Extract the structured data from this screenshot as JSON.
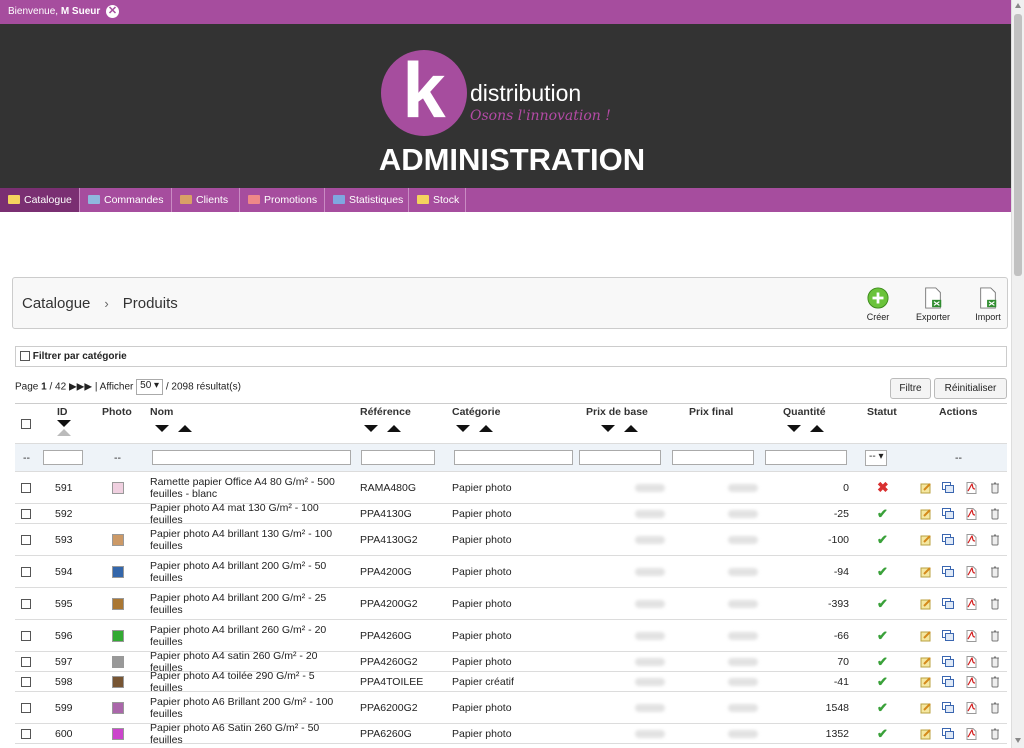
{
  "topbar": {
    "welcome": "Bienvenue,",
    "user": "M Sueur"
  },
  "header": {
    "logo_letter": "k",
    "brand": "distribution",
    "tagline": "Osons l'innovation !",
    "title": "ADMINISTRATION"
  },
  "nav": [
    {
      "label": "Catalogue",
      "icon": "folder-icon",
      "color": "#f4d35e"
    },
    {
      "label": "Commandes",
      "icon": "cart-icon",
      "color": "#8fb8de"
    },
    {
      "label": "Clients",
      "icon": "users-icon",
      "color": "#d9a066"
    },
    {
      "label": "Promotions",
      "icon": "gift-icon",
      "color": "#e88"
    },
    {
      "label": "Statistiques",
      "icon": "chart-icon",
      "color": "#7fa7e0"
    },
    {
      "label": "Stock",
      "icon": "box-icon",
      "color": "#f4d35e"
    }
  ],
  "breadcrumb": {
    "root": "Catalogue",
    "current": "Produits"
  },
  "toolbar": {
    "create": "Créer",
    "export": "Exporter",
    "import": "Import"
  },
  "filter_by_category": "Filtrer par catégorie",
  "pager": {
    "page_label": "Page",
    "page": "1",
    "total_pages": "/ 42",
    "show_label": "| Afficher",
    "per_page": "50",
    "results": "/ 2098 résultat(s)"
  },
  "buttons": {
    "filter": "Filtre",
    "reset": "Réinitialiser"
  },
  "columns": {
    "id": "ID",
    "photo": "Photo",
    "name": "Nom",
    "reference": "Référence",
    "category": "Catégorie",
    "base_price": "Prix de base",
    "final_price": "Prix final",
    "quantity": "Quantité",
    "status": "Statut",
    "actions": "Actions"
  },
  "filter_row": {
    "dash": "--",
    "status_select": "--"
  },
  "rows": [
    {
      "id": "591",
      "name": "Ramette papier Office A4 80 G/m² - 500 feuilles - blanc",
      "ref": "RAMA480G",
      "cat": "Papier photo",
      "qty": "0",
      "status": "inactive",
      "photo": "#f0d0e0"
    },
    {
      "id": "592",
      "name": "Papier photo A4 mat 130 G/m² - 100 feuilles",
      "ref": "PPA4130G",
      "cat": "Papier photo",
      "qty": "-25",
      "status": "active",
      "photo": ""
    },
    {
      "id": "593",
      "name": "Papier photo A4 brillant 130 G/m² - 100 feuilles",
      "ref": "PPA4130G2",
      "cat": "Papier photo",
      "qty": "-100",
      "status": "active",
      "photo": "#c96"
    },
    {
      "id": "594",
      "name": "Papier photo A4 brillant 200 G/m² - 50 feuilles",
      "ref": "PPA4200G",
      "cat": "Papier photo",
      "qty": "-94",
      "status": "active",
      "photo": "#36a"
    },
    {
      "id": "595",
      "name": "Papier photo A4 brillant 200 G/m² - 25 feuilles",
      "ref": "PPA4200G2",
      "cat": "Papier photo",
      "qty": "-393",
      "status": "active",
      "photo": "#a73"
    },
    {
      "id": "596",
      "name": "Papier photo A4 brillant 260 G/m² - 20 feuilles",
      "ref": "PPA4260G",
      "cat": "Papier photo",
      "qty": "-66",
      "status": "active",
      "photo": "#3a3"
    },
    {
      "id": "597",
      "name": "Papier photo A4 satin 260 G/m² - 20 feuilles",
      "ref": "PPA4260G2",
      "cat": "Papier photo",
      "qty": "70",
      "status": "active",
      "photo": "#999"
    },
    {
      "id": "598",
      "name": "Papier photo A4 toilée 290 G/m² - 5 feuilles",
      "ref": "PPA4TOILEE",
      "cat": "Papier créatif",
      "qty": "-41",
      "status": "active",
      "photo": "#753"
    },
    {
      "id": "599",
      "name": "Papier photo A6 Brillant 200 G/m² - 100 feuilles",
      "ref": "PPA6200G2",
      "cat": "Papier photo",
      "qty": "1548",
      "status": "active",
      "photo": "#a6a"
    },
    {
      "id": "600",
      "name": "Papier photo A6 Satin 260 G/m² - 50 feuilles",
      "ref": "PPA6260G",
      "cat": "Papier photo",
      "qty": "1352",
      "status": "active",
      "photo": "#c4c"
    }
  ],
  "colors": {
    "accent": "#a64d9e",
    "header_bg": "#333333",
    "ok": "#3aa13a",
    "error": "#d93030"
  }
}
